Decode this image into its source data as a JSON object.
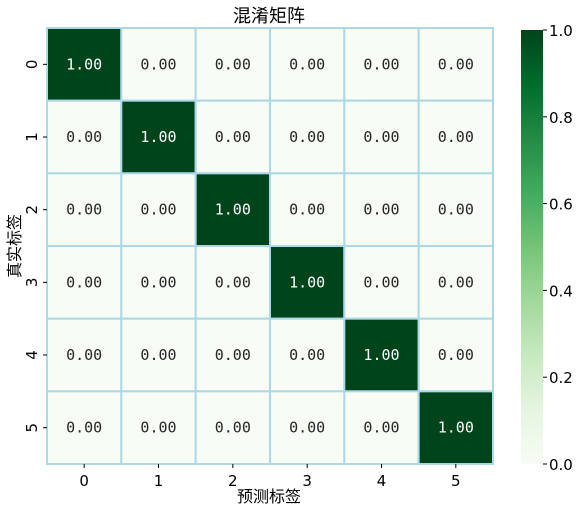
{
  "chart_data": {
    "type": "heatmap",
    "title": "混淆矩阵",
    "xlabel": "预测标签",
    "ylabel": "真实标签",
    "x_categories": [
      "0",
      "1",
      "2",
      "3",
      "4",
      "5"
    ],
    "y_categories": [
      "0",
      "1",
      "2",
      "3",
      "4",
      "5"
    ],
    "values": [
      [
        1.0,
        0.0,
        0.0,
        0.0,
        0.0,
        0.0
      ],
      [
        0.0,
        1.0,
        0.0,
        0.0,
        0.0,
        0.0
      ],
      [
        0.0,
        0.0,
        1.0,
        0.0,
        0.0,
        0.0
      ],
      [
        0.0,
        0.0,
        0.0,
        1.0,
        0.0,
        0.0
      ],
      [
        0.0,
        0.0,
        0.0,
        0.0,
        1.0,
        0.0
      ],
      [
        0.0,
        0.0,
        0.0,
        0.0,
        0.0,
        1.0
      ]
    ],
    "value_labels": [
      [
        "1.00",
        "0.00",
        "0.00",
        "0.00",
        "0.00",
        "0.00"
      ],
      [
        "0.00",
        "1.00",
        "0.00",
        "0.00",
        "0.00",
        "0.00"
      ],
      [
        "0.00",
        "0.00",
        "1.00",
        "0.00",
        "0.00",
        "0.00"
      ],
      [
        "0.00",
        "0.00",
        "0.00",
        "1.00",
        "0.00",
        "0.00"
      ],
      [
        "0.00",
        "0.00",
        "0.00",
        "0.00",
        "1.00",
        "0.00"
      ],
      [
        "0.00",
        "0.00",
        "0.00",
        "0.00",
        "0.00",
        "1.00"
      ]
    ],
    "colormap": "Greens",
    "colors": {
      "low": "#f7fcf5",
      "high": "#00441b",
      "cell_border": "#add8e6"
    },
    "colorbar": {
      "range": [
        0.0,
        1.0
      ],
      "ticks": [
        0.0,
        0.2,
        0.4,
        0.6,
        0.8,
        1.0
      ],
      "tick_labels": [
        "0.0",
        "0.2",
        "0.4",
        "0.6",
        "0.8",
        "1.0"
      ]
    }
  }
}
